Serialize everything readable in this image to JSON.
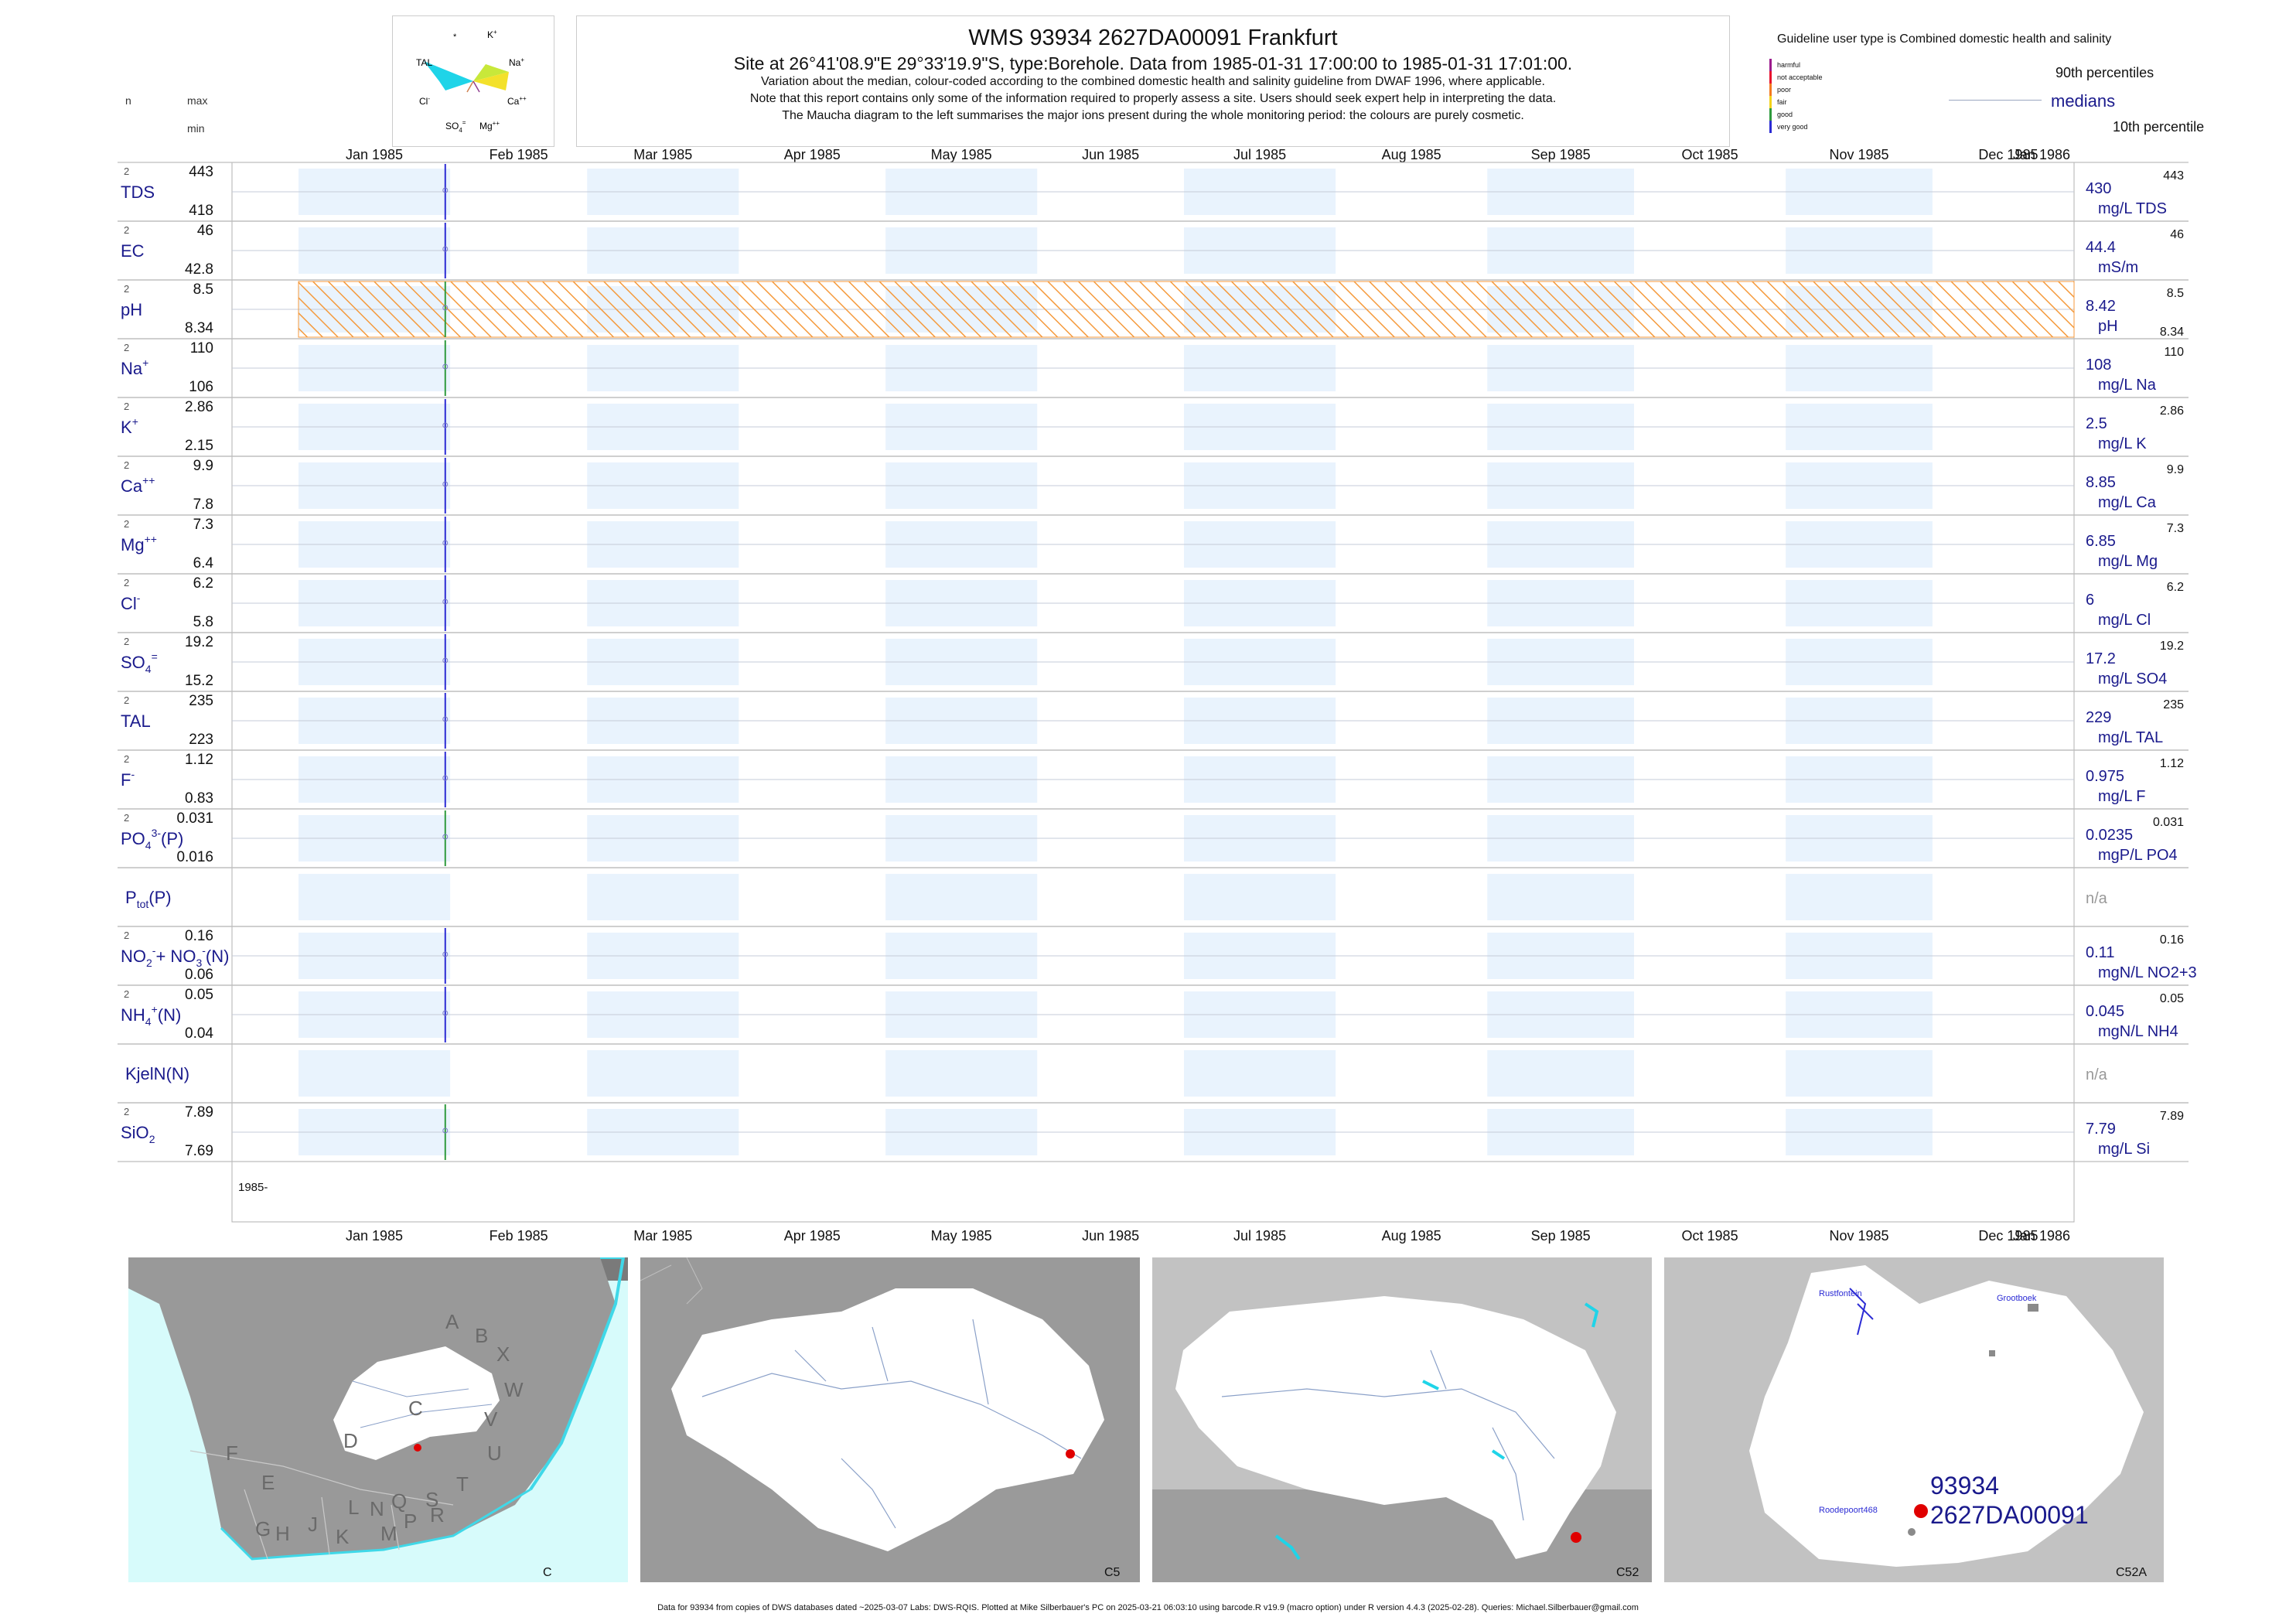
{
  "header": {
    "title": "WMS 93934 2627DA00091 Frankfurt",
    "site_line": "Site at 26°41'08.9\"E 29°33'19.9\"S, type:Borehole.  Data from 1985-01-31 17:00:00 to 1985-01-31 17:01:00.",
    "note_1": "Variation about the median,  colour-coded according to the combined domestic health and salinity guideline from DWAF 1996, where applicable.",
    "note_2": "Note that this report contains only some of the information required to properly assess a site. Users should seek expert help in interpreting the data.",
    "note_3": "The Maucha diagram to the left summarises the major ions present during the whole monitoring period: the colours are purely cosmetic."
  },
  "column_headers": {
    "n": "n",
    "max": "max",
    "min": "min"
  },
  "maucha": {
    "labels": [
      "*",
      "K+",
      "TAL",
      "Na+",
      "Cl-",
      "Ca++",
      "SO4=",
      "Mg++"
    ]
  },
  "legend": {
    "guideline_title": "Guideline user type is Combined domestic health and salinity",
    "levels": [
      {
        "label": "harmful",
        "color": "#9b1a8c"
      },
      {
        "label": "not acceptable",
        "color": "#e8112d"
      },
      {
        "label": "poor",
        "color": "#f47a20"
      },
      {
        "label": "fair",
        "color": "#f3d21b"
      },
      {
        "label": "good",
        "color": "#2e9a3d"
      },
      {
        "label": "very good",
        "color": "#2b2bd4"
      }
    ],
    "p90": "90th percentiles",
    "medians": "medians",
    "p10": "10th percentile"
  },
  "chart_data": {
    "type": "line",
    "title": "WMS 93934 2627DA00091 Frankfurt",
    "x_axis_labels": [
      "Jan 1985",
      "Feb 1985",
      "Mar 1985",
      "Apr 1985",
      "May 1985",
      "Jun 1985",
      "Jul 1985",
      "Aug 1985",
      "Sep 1985",
      "Oct 1985",
      "Nov 1985",
      "Dec 1985",
      "Jan 1986"
    ],
    "year_label": "1985-",
    "sample_date": "1985-01-31",
    "series": [
      {
        "key": "tds",
        "label": "TDS",
        "n": "2",
        "max": "443",
        "min": "418",
        "median": "430",
        "unit": "mg/L TDS",
        "p90": "443",
        "p10": "",
        "color": "#2b2bd4",
        "hatched": false
      },
      {
        "key": "ec",
        "label": "EC",
        "n": "2",
        "max": "46",
        "min": "42.8",
        "median": "44.4",
        "unit": "mS/m",
        "p90": "46",
        "p10": "",
        "color": "#2b2bd4",
        "hatched": false
      },
      {
        "key": "ph",
        "label": "pH",
        "n": "2",
        "max": "8.5",
        "min": "8.34",
        "median": "8.42",
        "unit": "pH",
        "p90": "8.5",
        "p10": "8.34",
        "color": "#2e9a3d",
        "hatched": true
      },
      {
        "key": "na",
        "label": "Na",
        "sup": "+",
        "n": "2",
        "max": "110",
        "min": "106",
        "median": "108",
        "unit": "mg/L Na",
        "p90": "110",
        "p10": "",
        "color": "#2e9a3d",
        "hatched": false
      },
      {
        "key": "k",
        "label": "K",
        "sup": "+",
        "n": "2",
        "max": "2.86",
        "min": "2.15",
        "median": "2.5",
        "unit": "mg/L K",
        "p90": "2.86",
        "p10": "",
        "color": "#2b2bd4",
        "hatched": false
      },
      {
        "key": "ca",
        "label": "Ca",
        "sup": "++",
        "n": "2",
        "max": "9.9",
        "min": "7.8",
        "median": "8.85",
        "unit": "mg/L Ca",
        "p90": "9.9",
        "p10": "",
        "color": "#2b2bd4",
        "hatched": false
      },
      {
        "key": "mg",
        "label": "Mg",
        "sup": "++",
        "n": "2",
        "max": "7.3",
        "min": "6.4",
        "median": "6.85",
        "unit": "mg/L Mg",
        "p90": "7.3",
        "p10": "",
        "color": "#2b2bd4",
        "hatched": false
      },
      {
        "key": "cl",
        "label": "Cl",
        "sup": "-",
        "n": "2",
        "max": "6.2",
        "min": "5.8",
        "median": "6",
        "unit": "mg/L Cl",
        "p90": "6.2",
        "p10": "",
        "color": "#2b2bd4",
        "hatched": false
      },
      {
        "key": "so4",
        "label": "SO",
        "sub": "4",
        "sup": "=",
        "n": "2",
        "max": "19.2",
        "min": "15.2",
        "median": "17.2",
        "unit": "mg/L SO4",
        "p90": "19.2",
        "p10": "",
        "color": "#2b2bd4",
        "hatched": false
      },
      {
        "key": "tal",
        "label": "TAL",
        "n": "2",
        "max": "235",
        "min": "223",
        "median": "229",
        "unit": "mg/L TAL",
        "p90": "235",
        "p10": "",
        "color": "#2b2bd4",
        "hatched": false
      },
      {
        "key": "f",
        "label": "F",
        "sup": "-",
        "n": "2",
        "max": "1.12",
        "min": "0.83",
        "median": "0.975",
        "unit": "mg/L F",
        "p90": "1.12",
        "p10": "",
        "color": "#2b2bd4",
        "hatched": false
      },
      {
        "key": "po4",
        "label": "PO",
        "sub": "4",
        "sup": "3-",
        "tail": "(P)",
        "n": "2",
        "max": "0.031",
        "min": "0.016",
        "median": "0.0235",
        "unit": "mgP/L PO4",
        "p90": "0.031",
        "p10": "",
        "color": "#2e9a3d",
        "hatched": false
      },
      {
        "key": "ptot",
        "label": "P",
        "sub": "tot",
        "tail": "(P)",
        "n": "",
        "max": "",
        "min": "",
        "median": "n/a",
        "unit": "",
        "p90": "",
        "p10": "",
        "color": "#2b2bd4",
        "hatched": false
      },
      {
        "key": "no",
        "label": "NO",
        "sub": "2",
        "sup": "-",
        "tail": "+ NO",
        "sub2": "3",
        "sup2": "-",
        "tail2": "(N)",
        "n": "2",
        "max": "0.16",
        "min": "0.06",
        "median": "0.11",
        "unit": "mgN/L NO2+3",
        "p90": "0.16",
        "p10": "",
        "color": "#2b2bd4",
        "hatched": false
      },
      {
        "key": "nh4",
        "label": "NH",
        "sub": "4",
        "sup": "+",
        "tail": "(N)",
        "n": "2",
        "max": "0.05",
        "min": "0.04",
        "median": "0.045",
        "unit": "mgN/L NH4",
        "p90": "0.05",
        "p10": "",
        "color": "#2b2bd4",
        "hatched": false
      },
      {
        "key": "kjel",
        "label": "KjelN(N)",
        "n": "",
        "max": "",
        "min": "",
        "median": "n/a",
        "unit": "",
        "p90": "",
        "p10": "",
        "color": "#2b2bd4",
        "hatched": false
      },
      {
        "key": "sio2",
        "label": "SiO",
        "sub": "2",
        "n": "2",
        "max": "7.89",
        "min": "7.69",
        "median": "7.79",
        "unit": "mg/L Si",
        "p90": "7.89",
        "p10": "",
        "color": "#2e9a3d",
        "hatched": false
      }
    ]
  },
  "maps": {
    "labels": [
      "C",
      "C5",
      "C52",
      "C52A"
    ],
    "regions": [
      "A",
      "B",
      "X",
      "W",
      "C",
      "V",
      "D",
      "U",
      "F",
      "T",
      "E",
      "S",
      "G",
      "H",
      "J",
      "L",
      "N",
      "Q",
      "R",
      "K",
      "M",
      "P"
    ],
    "places": [
      "Rustfontein",
      "Grootboek",
      "Roodepoort468"
    ],
    "site_id": "93934",
    "site_code": "2627DA00091"
  },
  "footer": "Data for 93934 from copies of DWS databases dated ~2025-03-07 Labs: DWS-RQIS. Plotted at Mike Silberbauer's PC on 2025-03-21 06:03:10 using barcode.R v19.9 (macro option) under R version 4.4.3 (2025-02-28). Queries: Michael.Silberbauer@gmail.com"
}
